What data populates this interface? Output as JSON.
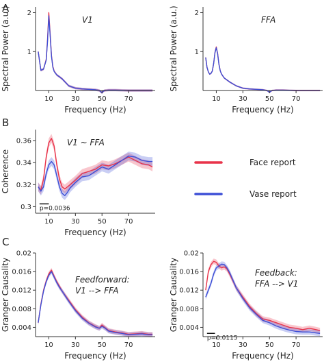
{
  "panel_letters": [
    "A",
    "B",
    "C"
  ],
  "colors": {
    "face": "#e8334a",
    "vase": "#3d4fd6",
    "axis": "#333333"
  },
  "legend": {
    "face": "Face report",
    "vase": "Vase report",
    "position": "center-right"
  },
  "chart_data": [
    {
      "id": "A-V1",
      "type": "line",
      "inset": "V1",
      "xlabel": "Frequency (Hz)",
      "ylabel": "Spectral Power (a.u.)",
      "xlim": [
        0,
        90
      ],
      "ylim": [
        0,
        2.15
      ],
      "xticks": [
        10,
        30,
        50,
        70
      ],
      "yticks": [
        1,
        2
      ],
      "spines": "left-bottom",
      "grid": false,
      "series": [
        {
          "key": "face",
          "x": [
            2,
            4,
            6,
            8,
            9,
            10,
            11,
            12,
            13,
            14,
            16,
            18,
            20,
            25,
            30,
            35,
            40,
            45,
            48,
            49,
            50,
            51,
            52,
            55,
            60,
            70,
            80,
            88
          ],
          "values": [
            1.0,
            0.52,
            0.55,
            0.8,
            1.3,
            2.0,
            1.45,
            0.9,
            0.62,
            0.5,
            0.4,
            0.35,
            0.3,
            0.12,
            0.06,
            0.04,
            0.03,
            0.02,
            0.0,
            -0.03,
            -0.06,
            -0.02,
            0.0,
            0.01,
            0.01,
            0.0,
            0.0,
            0.0
          ],
          "band": 0.03
        },
        {
          "key": "vase",
          "x": [
            2,
            4,
            6,
            8,
            9,
            10,
            11,
            12,
            13,
            14,
            16,
            18,
            20,
            25,
            30,
            35,
            40,
            45,
            48,
            49,
            50,
            51,
            52,
            55,
            60,
            70,
            80,
            88
          ],
          "values": [
            1.0,
            0.52,
            0.55,
            0.78,
            1.25,
            1.92,
            1.4,
            0.88,
            0.6,
            0.49,
            0.4,
            0.35,
            0.3,
            0.12,
            0.06,
            0.04,
            0.03,
            0.02,
            0.0,
            -0.03,
            -0.06,
            -0.02,
            0.0,
            0.01,
            0.01,
            0.0,
            0.0,
            0.0
          ],
          "band": 0.03
        }
      ]
    },
    {
      "id": "A-FFA",
      "type": "line",
      "inset": "FFA",
      "xlabel": "Frequency (Hz)",
      "ylabel": "Spectral Power (a.u.)",
      "xlim": [
        0,
        90
      ],
      "ylim": [
        0,
        2.15
      ],
      "xticks": [
        10,
        30,
        50,
        70
      ],
      "yticks": [
        1,
        2
      ],
      "spines": "left-bottom",
      "grid": false,
      "series": [
        {
          "key": "face",
          "x": [
            2,
            3,
            4,
            5,
            6,
            7,
            8,
            9,
            10,
            11,
            12,
            13,
            14,
            16,
            18,
            20,
            25,
            30,
            35,
            40,
            45,
            48,
            49,
            50,
            51,
            52,
            55,
            60,
            70,
            80,
            88
          ],
          "values": [
            0.85,
            0.6,
            0.48,
            0.42,
            0.44,
            0.5,
            0.7,
            0.98,
            1.12,
            0.95,
            0.68,
            0.5,
            0.42,
            0.32,
            0.27,
            0.22,
            0.12,
            0.06,
            0.04,
            0.03,
            0.02,
            0.0,
            -0.02,
            -0.05,
            -0.02,
            0.0,
            0.01,
            0.01,
            0.0,
            0.0,
            0.0
          ],
          "band": 0.02
        },
        {
          "key": "vase",
          "x": [
            2,
            3,
            4,
            5,
            6,
            7,
            8,
            9,
            10,
            11,
            12,
            13,
            14,
            16,
            18,
            20,
            25,
            30,
            35,
            40,
            45,
            48,
            49,
            50,
            51,
            52,
            55,
            60,
            70,
            80,
            88
          ],
          "values": [
            0.85,
            0.6,
            0.48,
            0.42,
            0.44,
            0.5,
            0.7,
            0.97,
            1.1,
            0.94,
            0.67,
            0.5,
            0.42,
            0.32,
            0.27,
            0.22,
            0.12,
            0.06,
            0.04,
            0.03,
            0.02,
            0.0,
            -0.02,
            -0.05,
            -0.02,
            0.0,
            0.01,
            0.01,
            0.0,
            0.0,
            0.0
          ],
          "band": 0.02
        }
      ]
    },
    {
      "id": "B",
      "type": "line",
      "inset": "V1 ~ FFA",
      "xlabel": "Frequency (Hz)",
      "ylabel": "Coherence",
      "xlim": [
        0,
        90
      ],
      "ylim": [
        0.294,
        0.37
      ],
      "xticks": [
        10,
        30,
        50,
        70
      ],
      "yticks": [
        0.3,
        0.32,
        0.34,
        0.36
      ],
      "yticklabels": [
        "0.3",
        "0.32",
        "0.34",
        "0.36"
      ],
      "spines": "left-bottom",
      "grid": false,
      "significance": {
        "label": "p=0.0036",
        "x0": 3,
        "x1": 10,
        "y": 0.3025
      },
      "series": [
        {
          "key": "face",
          "x": [
            2,
            4,
            6,
            8,
            10,
            12,
            14,
            16,
            18,
            20,
            22,
            24,
            26,
            30,
            35,
            40,
            45,
            50,
            55,
            60,
            65,
            70,
            75,
            80,
            85,
            88
          ],
          "values": [
            0.318,
            0.315,
            0.325,
            0.345,
            0.358,
            0.362,
            0.355,
            0.338,
            0.325,
            0.318,
            0.316,
            0.318,
            0.32,
            0.324,
            0.33,
            0.332,
            0.334,
            0.338,
            0.337,
            0.339,
            0.342,
            0.345,
            0.342,
            0.339,
            0.338,
            0.336
          ],
          "band": 0.004
        },
        {
          "key": "vase",
          "x": [
            2,
            4,
            6,
            8,
            10,
            12,
            14,
            16,
            18,
            20,
            22,
            24,
            26,
            30,
            35,
            40,
            45,
            50,
            55,
            60,
            65,
            70,
            75,
            80,
            85,
            88
          ],
          "values": [
            0.318,
            0.314,
            0.318,
            0.33,
            0.338,
            0.341,
            0.338,
            0.328,
            0.318,
            0.312,
            0.31,
            0.313,
            0.317,
            0.322,
            0.327,
            0.328,
            0.332,
            0.336,
            0.334,
            0.338,
            0.342,
            0.346,
            0.345,
            0.342,
            0.341,
            0.341
          ],
          "band": 0.004
        }
      ]
    },
    {
      "id": "C-FF",
      "type": "line",
      "inset": [
        "Feedforward:",
        "V1 --> FFA"
      ],
      "xlabel": "Frequency (Hz)",
      "ylabel": "Granger Causality",
      "xlim": [
        0,
        90
      ],
      "ylim": [
        0.002,
        0.02
      ],
      "xticks": [
        10,
        30,
        50,
        70
      ],
      "yticks": [
        0.004,
        0.008,
        0.012,
        0.016,
        0.02
      ],
      "yticklabels": [
        "0.004",
        "0.008",
        "0.012",
        "0.016",
        "0.02"
      ],
      "spines": "left-bottom",
      "grid": false,
      "series": [
        {
          "key": "face",
          "x": [
            2,
            4,
            6,
            8,
            10,
            12,
            14,
            16,
            18,
            20,
            25,
            30,
            35,
            40,
            45,
            48,
            50,
            52,
            55,
            60,
            65,
            70,
            75,
            80,
            85,
            88
          ],
          "values": [
            0.005,
            0.009,
            0.012,
            0.014,
            0.0155,
            0.0163,
            0.015,
            0.0138,
            0.0128,
            0.0118,
            0.0098,
            0.0078,
            0.0062,
            0.005,
            0.0042,
            0.0038,
            0.0045,
            0.004,
            0.0033,
            0.003,
            0.0028,
            0.0025,
            0.0026,
            0.0027,
            0.0025,
            0.0025
          ],
          "band": 0.0005
        },
        {
          "key": "vase",
          "x": [
            2,
            4,
            6,
            8,
            10,
            12,
            14,
            16,
            18,
            20,
            25,
            30,
            35,
            40,
            45,
            48,
            50,
            52,
            55,
            60,
            65,
            70,
            75,
            80,
            85,
            88
          ],
          "values": [
            0.005,
            0.0088,
            0.0118,
            0.0138,
            0.0152,
            0.016,
            0.0148,
            0.0136,
            0.0126,
            0.0118,
            0.0096,
            0.0076,
            0.006,
            0.0049,
            0.0041,
            0.0038,
            0.0042,
            0.0039,
            0.0032,
            0.0029,
            0.0027,
            0.0024,
            0.0025,
            0.0026,
            0.0024,
            0.0024
          ],
          "band": 0.0005
        }
      ]
    },
    {
      "id": "C-FB",
      "type": "line",
      "inset": [
        "Feedback:",
        "FFA --> V1"
      ],
      "xlabel": "Frequency (Hz)",
      "ylabel": "Granger Causality",
      "xlim": [
        0,
        90
      ],
      "ylim": [
        0.002,
        0.02
      ],
      "xticks": [
        10,
        30,
        50,
        70
      ],
      "yticks": [
        0.004,
        0.008,
        0.012,
        0.016,
        0.02
      ],
      "yticklabels": [
        "0.004",
        "0.008",
        "0.012",
        "0.016",
        "0.02"
      ],
      "spines": "left-bottom",
      "grid": false,
      "significance": {
        "label": "p=0.0115",
        "x0": 3,
        "x1": 9,
        "y": 0.0027
      },
      "series": [
        {
          "key": "face",
          "x": [
            2,
            4,
            6,
            8,
            10,
            12,
            14,
            16,
            18,
            20,
            25,
            30,
            35,
            40,
            45,
            50,
            55,
            60,
            65,
            70,
            75,
            80,
            85,
            88
          ],
          "values": [
            0.012,
            0.016,
            0.0175,
            0.0182,
            0.018,
            0.0172,
            0.0168,
            0.017,
            0.0166,
            0.0155,
            0.0125,
            0.0105,
            0.0085,
            0.007,
            0.0058,
            0.0055,
            0.005,
            0.0045,
            0.004,
            0.0038,
            0.0035,
            0.0038,
            0.0035,
            0.0033
          ],
          "band": 0.0006
        },
        {
          "key": "vase",
          "x": [
            2,
            4,
            6,
            8,
            10,
            12,
            14,
            16,
            18,
            20,
            25,
            30,
            35,
            40,
            45,
            50,
            55,
            60,
            65,
            70,
            75,
            80,
            85,
            88
          ],
          "values": [
            0.0105,
            0.012,
            0.0135,
            0.0155,
            0.0168,
            0.0172,
            0.0176,
            0.0175,
            0.0168,
            0.0158,
            0.0125,
            0.0102,
            0.0082,
            0.0068,
            0.0055,
            0.005,
            0.0043,
            0.0038,
            0.0034,
            0.0031,
            0.003,
            0.003,
            0.0028,
            0.0027
          ],
          "band": 0.0006
        }
      ]
    }
  ]
}
